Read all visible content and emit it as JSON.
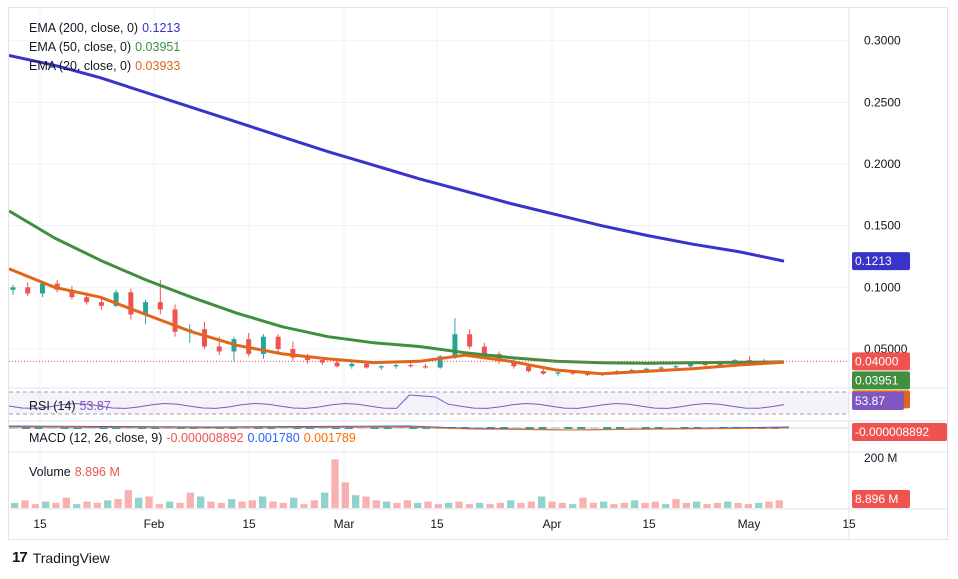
{
  "brand": {
    "name": "TradingView",
    "logo_text": "17"
  },
  "colors": {
    "ema200": "#3a33c9",
    "ema50": "#3f8f3f",
    "ema20": "#e0671a",
    "up": "#26a69a",
    "down": "#ef5350",
    "rsi": "#7e57c2",
    "macd": "#2962ff",
    "signal": "#ff6d00",
    "grid": "#f0f3fa",
    "axis_text": "#131722"
  },
  "legends": {
    "ema200": {
      "label": "EMA (200, close, 0)",
      "value": "0.1213"
    },
    "ema50": {
      "label": "EMA (50, close, 0)",
      "value": "0.03951"
    },
    "ema20": {
      "label": "EMA (20, close, 0)",
      "value": "0.03933"
    },
    "rsi": {
      "label": "RSI (14)",
      "value": "53.87"
    },
    "macd": {
      "label": "MACD (12, 26, close, 9)",
      "hist": "-0.000008892",
      "macd": "0.001780",
      "signal": "0.001789"
    },
    "volume": {
      "label": "Volume",
      "value": "8.896 M"
    }
  },
  "badges": {
    "ema200": "0.1213",
    "price": "0.04000",
    "ema50": "0.03951",
    "ema20": "0.03933",
    "rsi": "53.87",
    "macd": "-0.000008892",
    "volume": "8.896 M"
  },
  "volume_axis_label": "200 M",
  "chart_data": {
    "type": "line",
    "price_axis": {
      "ticks": [
        "0.3000",
        "0.2500",
        "0.2000",
        "0.1500",
        "0.1000",
        "0.05000"
      ],
      "ylim": [
        0.02,
        0.32
      ]
    },
    "time_axis": {
      "ticks": [
        "15",
        "Feb",
        "15",
        "Mar",
        "15",
        "Apr",
        "15",
        "May",
        "15"
      ]
    },
    "series": [
      {
        "name": "EMA (200, close, 0)",
        "values": [
          0.288,
          0.28,
          0.27,
          0.258,
          0.246,
          0.234,
          0.222,
          0.21,
          0.199,
          0.188,
          0.178,
          0.168,
          0.159,
          0.15,
          0.142,
          0.135,
          0.129,
          0.1213
        ]
      },
      {
        "name": "EMA (50, close, 0)",
        "values": [
          0.162,
          0.14,
          0.122,
          0.106,
          0.092,
          0.079,
          0.068,
          0.06,
          0.055,
          0.052,
          0.047,
          0.043,
          0.04,
          0.0388,
          0.0385,
          0.0388,
          0.0392,
          0.03951
        ]
      },
      {
        "name": "EMA (20, close, 0)",
        "values": [
          0.115,
          0.1,
          0.092,
          0.078,
          0.064,
          0.053,
          0.046,
          0.042,
          0.039,
          0.04,
          0.045,
          0.04,
          0.033,
          0.03,
          0.032,
          0.034,
          0.037,
          0.03933
        ]
      }
    ],
    "candles": [
      {
        "o": 0.098,
        "h": 0.102,
        "l": 0.094,
        "c": 0.1
      },
      {
        "o": 0.1,
        "h": 0.104,
        "l": 0.093,
        "c": 0.095
      },
      {
        "o": 0.095,
        "h": 0.105,
        "l": 0.092,
        "c": 0.103
      },
      {
        "o": 0.103,
        "h": 0.106,
        "l": 0.096,
        "c": 0.098
      },
      {
        "o": 0.098,
        "h": 0.101,
        "l": 0.09,
        "c": 0.092
      },
      {
        "o": 0.092,
        "h": 0.096,
        "l": 0.086,
        "c": 0.088
      },
      {
        "o": 0.088,
        "h": 0.093,
        "l": 0.082,
        "c": 0.085
      },
      {
        "o": 0.085,
        "h": 0.098,
        "l": 0.084,
        "c": 0.096
      },
      {
        "o": 0.096,
        "h": 0.099,
        "l": 0.074,
        "c": 0.078
      },
      {
        "o": 0.078,
        "h": 0.09,
        "l": 0.07,
        "c": 0.088
      },
      {
        "o": 0.088,
        "h": 0.106,
        "l": 0.078,
        "c": 0.082
      },
      {
        "o": 0.082,
        "h": 0.086,
        "l": 0.06,
        "c": 0.064
      },
      {
        "o": 0.064,
        "h": 0.07,
        "l": 0.055,
        "c": 0.066
      },
      {
        "o": 0.066,
        "h": 0.072,
        "l": 0.05,
        "c": 0.052
      },
      {
        "o": 0.052,
        "h": 0.06,
        "l": 0.045,
        "c": 0.048
      },
      {
        "o": 0.048,
        "h": 0.06,
        "l": 0.04,
        "c": 0.058
      },
      {
        "o": 0.058,
        "h": 0.063,
        "l": 0.044,
        "c": 0.046
      },
      {
        "o": 0.046,
        "h": 0.062,
        "l": 0.042,
        "c": 0.06
      },
      {
        "o": 0.06,
        "h": 0.062,
        "l": 0.047,
        "c": 0.05
      },
      {
        "o": 0.05,
        "h": 0.056,
        "l": 0.04,
        "c": 0.043
      },
      {
        "o": 0.043,
        "h": 0.046,
        "l": 0.038,
        "c": 0.041
      },
      {
        "o": 0.041,
        "h": 0.043,
        "l": 0.037,
        "c": 0.039
      },
      {
        "o": 0.039,
        "h": 0.041,
        "l": 0.035,
        "c": 0.036
      },
      {
        "o": 0.036,
        "h": 0.04,
        "l": 0.034,
        "c": 0.038
      },
      {
        "o": 0.038,
        "h": 0.039,
        "l": 0.034,
        "c": 0.035
      },
      {
        "o": 0.035,
        "h": 0.037,
        "l": 0.033,
        "c": 0.036
      },
      {
        "o": 0.036,
        "h": 0.038,
        "l": 0.034,
        "c": 0.037
      },
      {
        "o": 0.037,
        "h": 0.039,
        "l": 0.035,
        "c": 0.036
      },
      {
        "o": 0.036,
        "h": 0.038,
        "l": 0.034,
        "c": 0.035
      },
      {
        "o": 0.035,
        "h": 0.045,
        "l": 0.034,
        "c": 0.044
      },
      {
        "o": 0.044,
        "h": 0.075,
        "l": 0.042,
        "c": 0.062
      },
      {
        "o": 0.062,
        "h": 0.066,
        "l": 0.05,
        "c": 0.052
      },
      {
        "o": 0.052,
        "h": 0.055,
        "l": 0.044,
        "c": 0.046
      },
      {
        "o": 0.046,
        "h": 0.048,
        "l": 0.038,
        "c": 0.04
      },
      {
        "o": 0.04,
        "h": 0.042,
        "l": 0.034,
        "c": 0.036
      },
      {
        "o": 0.036,
        "h": 0.038,
        "l": 0.031,
        "c": 0.032
      },
      {
        "o": 0.032,
        "h": 0.034,
        "l": 0.029,
        "c": 0.03
      },
      {
        "o": 0.03,
        "h": 0.032,
        "l": 0.028,
        "c": 0.031
      },
      {
        "o": 0.031,
        "h": 0.033,
        "l": 0.029,
        "c": 0.03
      },
      {
        "o": 0.03,
        "h": 0.032,
        "l": 0.028,
        "c": 0.029
      },
      {
        "o": 0.029,
        "h": 0.031,
        "l": 0.028,
        "c": 0.03
      },
      {
        "o": 0.03,
        "h": 0.033,
        "l": 0.029,
        "c": 0.032
      },
      {
        "o": 0.032,
        "h": 0.034,
        "l": 0.031,
        "c": 0.033
      },
      {
        "o": 0.033,
        "h": 0.035,
        "l": 0.032,
        "c": 0.034
      },
      {
        "o": 0.034,
        "h": 0.036,
        "l": 0.033,
        "c": 0.035
      },
      {
        "o": 0.035,
        "h": 0.037,
        "l": 0.034,
        "c": 0.036
      },
      {
        "o": 0.036,
        "h": 0.039,
        "l": 0.035,
        "c": 0.038
      },
      {
        "o": 0.038,
        "h": 0.04,
        "l": 0.036,
        "c": 0.037
      },
      {
        "o": 0.037,
        "h": 0.039,
        "l": 0.036,
        "c": 0.038
      },
      {
        "o": 0.038,
        "h": 0.042,
        "l": 0.037,
        "c": 0.041
      },
      {
        "o": 0.041,
        "h": 0.044,
        "l": 0.039,
        "c": 0.04
      },
      {
        "o": 0.04,
        "h": 0.042,
        "l": 0.038,
        "c": 0.039
      },
      {
        "o": 0.039,
        "h": 0.041,
        "l": 0.038,
        "c": 0.04
      }
    ],
    "volume_values": [
      4,
      6,
      3,
      5,
      4,
      8,
      3,
      5,
      4,
      6,
      7,
      14,
      8,
      9,
      3,
      5,
      4,
      12,
      9,
      5,
      4,
      7,
      5,
      6,
      9,
      5,
      4,
      8,
      3,
      6,
      12,
      38,
      20,
      10,
      9,
      6,
      5,
      4,
      6,
      4,
      5,
      3,
      4,
      5,
      3,
      4,
      3,
      4,
      6,
      4,
      5,
      9,
      5,
      4,
      3,
      8,
      4,
      5,
      3,
      4,
      6,
      4,
      5,
      3,
      7,
      4,
      5,
      3,
      4,
      5,
      4,
      3,
      4,
      5,
      6
    ],
    "rsi": {
      "level_upper": 70,
      "level_lower": 30,
      "last": 53.87
    }
  }
}
